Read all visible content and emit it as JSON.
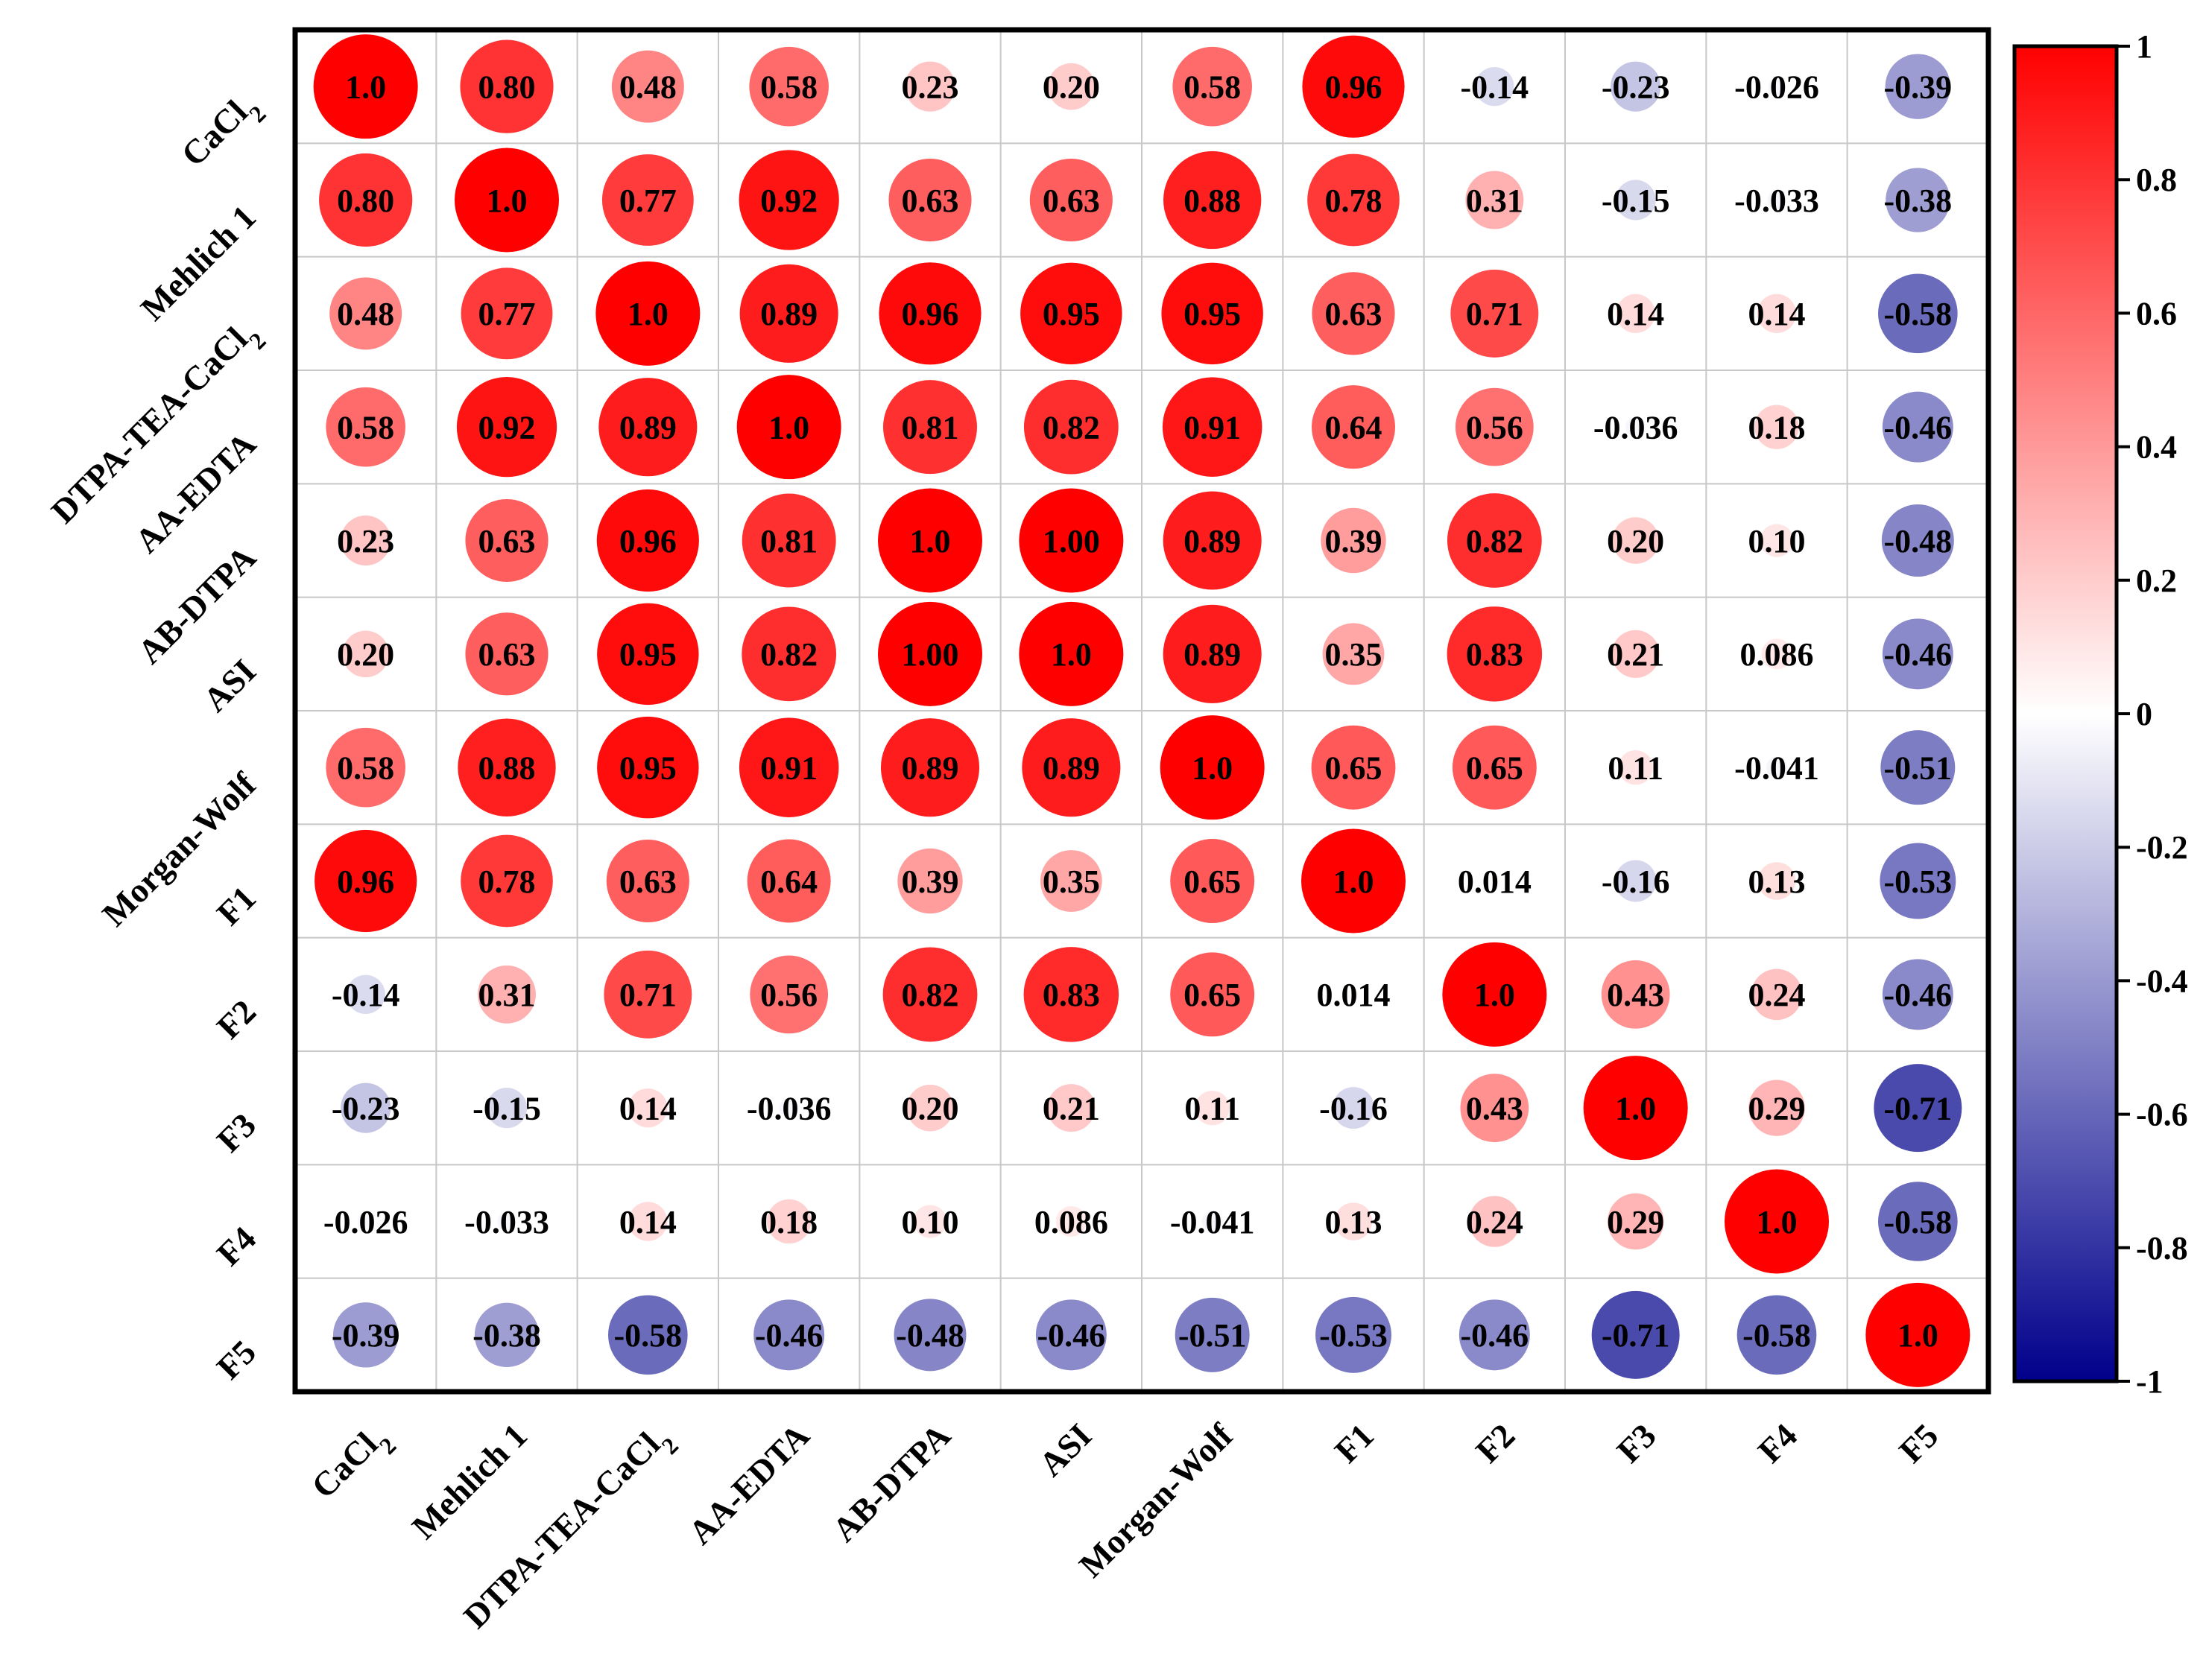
{
  "chart_data": {
    "type": "heatmap",
    "style": "correlation-circles",
    "title": "",
    "variables": [
      {
        "id": "CaCl2",
        "label": "CaCl",
        "sub": "2"
      },
      {
        "id": "Mehlich 1",
        "label": "Mehlich 1",
        "sub": ""
      },
      {
        "id": "DTPA-TEA-CaCl2",
        "label": "DTPA-TEA-CaCl",
        "sub": "2"
      },
      {
        "id": "AA-EDTA",
        "label": "AA-EDTA",
        "sub": ""
      },
      {
        "id": "AB-DTPA",
        "label": "AB-DTPA",
        "sub": ""
      },
      {
        "id": "ASI",
        "label": "ASI",
        "sub": ""
      },
      {
        "id": "Morgan-Wolf",
        "label": "Morgan-Wolf",
        "sub": ""
      },
      {
        "id": "F1",
        "label": "F1",
        "sub": ""
      },
      {
        "id": "F2",
        "label": "F2",
        "sub": ""
      },
      {
        "id": "F3",
        "label": "F3",
        "sub": ""
      },
      {
        "id": "F4",
        "label": "F4",
        "sub": ""
      },
      {
        "id": "F5",
        "label": "F5",
        "sub": ""
      }
    ],
    "matrix_labels": [
      [
        "1.0",
        "0.80",
        "0.48",
        "0.58",
        "0.23",
        "0.20",
        "0.58",
        "0.96",
        "-0.14",
        "-0.23",
        "-0.026",
        "-0.39"
      ],
      [
        "0.80",
        "1.0",
        "0.77",
        "0.92",
        "0.63",
        "0.63",
        "0.88",
        "0.78",
        "0.31",
        "-0.15",
        "-0.033",
        "-0.38"
      ],
      [
        "0.48",
        "0.77",
        "1.0",
        "0.89",
        "0.96",
        "0.95",
        "0.95",
        "0.63",
        "0.71",
        "0.14",
        "0.14",
        "-0.58"
      ],
      [
        "0.58",
        "0.92",
        "0.89",
        "1.0",
        "0.81",
        "0.82",
        "0.91",
        "0.64",
        "0.56",
        "-0.036",
        "0.18",
        "-0.46"
      ],
      [
        "0.23",
        "0.63",
        "0.96",
        "0.81",
        "1.0",
        "1.00",
        "0.89",
        "0.39",
        "0.82",
        "0.20",
        "0.10",
        "-0.48"
      ],
      [
        "0.20",
        "0.63",
        "0.95",
        "0.82",
        "1.00",
        "1.0",
        "0.89",
        "0.35",
        "0.83",
        "0.21",
        "0.086",
        "-0.46"
      ],
      [
        "0.58",
        "0.88",
        "0.95",
        "0.91",
        "0.89",
        "0.89",
        "1.0",
        "0.65",
        "0.65",
        "0.11",
        "-0.041",
        "-0.51"
      ],
      [
        "0.96",
        "0.78",
        "0.63",
        "0.64",
        "0.39",
        "0.35",
        "0.65",
        "1.0",
        "0.014",
        "-0.16",
        "0.13",
        "-0.53"
      ],
      [
        "-0.14",
        "0.31",
        "0.71",
        "0.56",
        "0.82",
        "0.83",
        "0.65",
        "0.014",
        "1.0",
        "0.43",
        "0.24",
        "-0.46"
      ],
      [
        "-0.23",
        "-0.15",
        "0.14",
        "-0.036",
        "0.20",
        "0.21",
        "0.11",
        "-0.16",
        "0.43",
        "1.0",
        "0.29",
        "-0.71"
      ],
      [
        "-0.026",
        "-0.033",
        "0.14",
        "0.18",
        "0.10",
        "0.086",
        "-0.041",
        "0.13",
        "0.24",
        "0.29",
        "1.0",
        "-0.58"
      ],
      [
        "-0.39",
        "-0.38",
        "-0.58",
        "-0.46",
        "-0.48",
        "-0.46",
        "-0.51",
        "-0.53",
        "-0.46",
        "-0.71",
        "-0.58",
        "1.0"
      ]
    ],
    "colorbar": {
      "range": [
        -1,
        1
      ],
      "ticks": [
        {
          "value": 1,
          "label": "1"
        },
        {
          "value": 0.8,
          "label": "0.8"
        },
        {
          "value": 0.6,
          "label": "0.6"
        },
        {
          "value": 0.4,
          "label": "0.4"
        },
        {
          "value": 0.2,
          "label": "0.2"
        },
        {
          "value": 0,
          "label": "0"
        },
        {
          "value": -0.2,
          "label": "-0.2"
        },
        {
          "value": -0.4,
          "label": "-0.4"
        },
        {
          "value": -0.6,
          "label": "-0.6"
        },
        {
          "value": -0.8,
          "label": "-0.8"
        },
        {
          "value": -1,
          "label": "-1"
        }
      ],
      "colors": {
        "positive": "#ff0000",
        "zero": "#ffffff",
        "negative": "#00008b"
      }
    },
    "grid": true,
    "legend": "right"
  }
}
